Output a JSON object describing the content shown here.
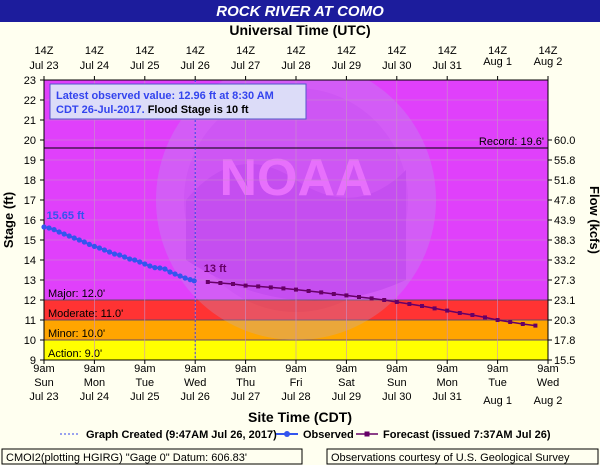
{
  "title": "ROCK RIVER AT COMO",
  "top_axis_title": "Universal Time (UTC)",
  "bottom_axis_title": "Site Time (CDT)",
  "left_axis_title": "Stage (ft)",
  "right_axis_title": "Flow (kcfs)",
  "info_box": {
    "line1": "Latest observed value: 12.96 ft at 8:30 AM",
    "line2_a": "CDT 26-Jul-2017.",
    "line2_b": " Flood Stage is 10 ft"
  },
  "legend": {
    "created": "Graph Created (9:47AM Jul 26, 2017)",
    "observed": "Observed",
    "forecast": "Forecast (issued 7:37AM Jul 26)"
  },
  "footer": {
    "left": "CMOI2(plotting HGIRG) \"Gage 0\" Datum: 606.83'",
    "right": "Observations courtesy of U.S. Geological Survey"
  },
  "colors": {
    "title_bar": "#1c1c9c",
    "major": "#e040fb",
    "moderate": "#ff3333",
    "minor": "#ffa500",
    "action": "#ffff00",
    "observed": "#3355ee",
    "forecast": "#660066"
  },
  "chart_data": {
    "type": "line",
    "ylim": [
      9,
      23
    ],
    "yticks": [
      9,
      10,
      11,
      12,
      13,
      14,
      15,
      16,
      17,
      18,
      19,
      20,
      21,
      22,
      23
    ],
    "right_ticks": [
      {
        "stage": 9.0,
        "label": "15.5"
      },
      {
        "stage": 10.0,
        "label": "17.8"
      },
      {
        "stage": 11.0,
        "label": "20.3"
      },
      {
        "stage": 12.0,
        "label": "23.1"
      },
      {
        "stage": 13.0,
        "label": "27.3"
      },
      {
        "stage": 14.0,
        "label": "33.2"
      },
      {
        "stage": 15.0,
        "label": "38.3"
      },
      {
        "stage": 16.0,
        "label": "43.9"
      },
      {
        "stage": 17.0,
        "label": "47.8"
      },
      {
        "stage": 18.0,
        "label": "51.8"
      },
      {
        "stage": 19.0,
        "label": "55.8"
      },
      {
        "stage": 20.0,
        "label": "60.0"
      }
    ],
    "days": [
      {
        "time": "9am",
        "weekday": "Sun",
        "date": "Jul 23",
        "utc_time": "14Z",
        "utc_date": "Jul 23"
      },
      {
        "time": "9am",
        "weekday": "Mon",
        "date": "Jul 24",
        "utc_time": "14Z",
        "utc_date": "Jul 24"
      },
      {
        "time": "9am",
        "weekday": "Tue",
        "date": "Jul 25",
        "utc_time": "14Z",
        "utc_date": "Jul 25"
      },
      {
        "time": "9am",
        "weekday": "Wed",
        "date": "Jul 26",
        "utc_time": "14Z",
        "utc_date": "Jul 26"
      },
      {
        "time": "9am",
        "weekday": "Thu",
        "date": "Jul 27",
        "utc_time": "14Z",
        "utc_date": "Jul 27"
      },
      {
        "time": "9am",
        "weekday": "Fri",
        "date": "Jul 28",
        "utc_time": "14Z",
        "utc_date": "Jul 28"
      },
      {
        "time": "9am",
        "weekday": "Sat",
        "date": "Jul 29",
        "utc_time": "14Z",
        "utc_date": "Jul 29"
      },
      {
        "time": "9am",
        "weekday": "Sun",
        "date": "Jul 30",
        "utc_time": "14Z",
        "utc_date": "Jul 30"
      },
      {
        "time": "9am",
        "weekday": "Mon",
        "date": "Jul 31",
        "utc_time": "14Z",
        "utc_date": "Jul 31"
      },
      {
        "time": "9am",
        "weekday": "Tue",
        "date": "Aug 1",
        "utc_time": "14Z",
        "utc_date": "Aug 1"
      },
      {
        "time": "9am",
        "weekday": "Wed",
        "date": "Aug 2",
        "utc_time": "14Z",
        "utc_date": "Aug 2"
      }
    ],
    "flood_categories": [
      {
        "name": "Action",
        "label": "Action: 9.0'",
        "from": 9,
        "to": 10
      },
      {
        "name": "Minor",
        "label": "Minor: 10.0'",
        "from": 10,
        "to": 11
      },
      {
        "name": "Moderate",
        "label": "Moderate: 11.0'",
        "from": 11,
        "to": 12
      },
      {
        "name": "Major",
        "label": "Major: 12.0'",
        "from": 12,
        "to": 23
      }
    ],
    "record": {
      "value": 19.6,
      "label": "Record: 19.6'"
    },
    "created_day": 3,
    "observed": {
      "name": "Observed",
      "x": [
        0,
        0.1,
        0.2,
        0.3,
        0.4,
        0.5,
        0.6,
        0.7,
        0.8,
        0.9,
        1.0,
        1.1,
        1.2,
        1.3,
        1.4,
        1.5,
        1.6,
        1.7,
        1.8,
        1.9,
        2.0,
        2.1,
        2.2,
        2.3,
        2.4,
        2.5,
        2.6,
        2.7,
        2.8,
        2.9,
        2.98
      ],
      "y": [
        15.65,
        15.6,
        15.52,
        15.4,
        15.3,
        15.2,
        15.1,
        15.0,
        14.9,
        14.78,
        14.68,
        14.6,
        14.5,
        14.4,
        14.3,
        14.25,
        14.15,
        14.05,
        14.0,
        13.9,
        13.8,
        13.7,
        13.62,
        13.6,
        13.55,
        13.4,
        13.3,
        13.2,
        13.1,
        13.02,
        12.96
      ],
      "label": "15.65 ft",
      "label_x": 0.05,
      "label_y": 15.65
    },
    "forecast": {
      "name": "Forecast",
      "x": [
        3.25,
        3.5,
        3.75,
        4.0,
        4.25,
        4.5,
        4.75,
        5.0,
        5.25,
        5.5,
        5.75,
        6.0,
        6.25,
        6.5,
        6.75,
        7.0,
        7.25,
        7.5,
        7.75,
        8.0,
        8.25,
        8.5,
        8.75,
        9.0,
        9.25,
        9.5,
        9.75
      ],
      "y": [
        12.9,
        12.85,
        12.8,
        12.72,
        12.68,
        12.63,
        12.58,
        12.52,
        12.45,
        12.38,
        12.3,
        12.23,
        12.15,
        12.08,
        12.0,
        11.9,
        11.8,
        11.7,
        11.58,
        11.47,
        11.35,
        11.25,
        11.13,
        11.0,
        10.9,
        10.8,
        10.72
      ],
      "label": "13 ft",
      "label_x": 3.25,
      "label_y": 12.9
    }
  }
}
